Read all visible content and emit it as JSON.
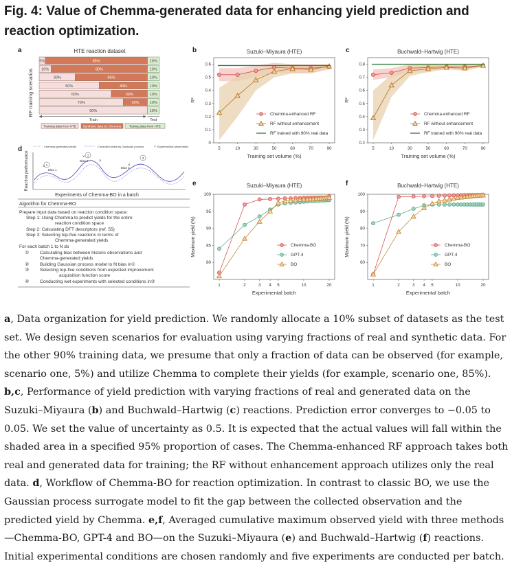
{
  "figure": {
    "title": "Fig. 4: Value of Chemma-generated data for enhancing yield prediction and reaction optimization."
  },
  "panel_a": {
    "label": "a",
    "title": "HTE reaction dataset",
    "y_axis_label": "RF training scenarios",
    "rows": [
      {
        "real": "5%",
        "synthetic": "85%",
        "test": "10%",
        "real_frac": 0.05,
        "synthetic_frac": 0.85
      },
      {
        "real": "10%",
        "synthetic": "80%",
        "test": "10%",
        "real_frac": 0.1,
        "synthetic_frac": 0.8
      },
      {
        "real": "30%",
        "synthetic": "60%",
        "test": "10%",
        "real_frac": 0.3,
        "synthetic_frac": 0.6
      },
      {
        "real": "50%",
        "synthetic": "40%",
        "test": "10%",
        "real_frac": 0.5,
        "synthetic_frac": 0.4
      },
      {
        "real": "60%",
        "synthetic": "30%",
        "test": "10%",
        "real_frac": 0.6,
        "synthetic_frac": 0.3
      },
      {
        "real": "70%",
        "synthetic": "20%",
        "test": "10%",
        "real_frac": 0.7,
        "synthetic_frac": 0.2
      },
      {
        "real": "90%",
        "synthetic": "",
        "test": "10%",
        "real_frac": 0.9,
        "synthetic_frac": 0.0
      }
    ],
    "train_label": "Train",
    "test_label": "Test",
    "legend": [
      "Training data from HTE",
      "Synthetic data by Chemma",
      "Testing data from HTE"
    ],
    "colors": {
      "real": "#f6dede",
      "synthetic": "#d3795a",
      "test": "#d9ecd0",
      "border": "#8a6a5a"
    }
  },
  "panel_d": {
    "label": "d",
    "legend": [
      "Chemma-generated yields",
      "Corrected yields by Gaussian process",
      "Experimental observation"
    ],
    "y_axis_label": "Reaction performance",
    "bias_labels": [
      "Bias 1",
      "Bias 2",
      "Bias 3"
    ],
    "step_markers": [
      "①",
      "②",
      "③",
      "④"
    ],
    "x_caption": "Experiments of Chemma-BO in a batch",
    "algorithm_title": "Algorithm for Chemma-BO",
    "algorithm_lines": [
      "Prepare input data based on reaction condition space:",
      "Step 1: Using Chemma to predict yields for the entire",
      "reaction condition space",
      "Step 2: Calculating DFT descriptors (ref. 55)",
      "Step 3: Selecting top-five reactions in terms of",
      "Chemma-generated yields",
      "For each batch 1 to N do",
      "Calculating bias between historic observations and",
      "Chemma-generated yields",
      "Building Gaussian process model to fit bias in①",
      "Selecting top-five conditions from expected improvement",
      "acquisition function score",
      "Conducting wet experiments with selected conditions in③"
    ]
  },
  "chart_data": [
    {
      "panel": "b",
      "type": "line",
      "title": "Suzuki–Miyaura (HTE)",
      "xlabel": "Training set volume (%)",
      "ylabel": "R²",
      "categories": [
        "5",
        "10",
        "30",
        "50",
        "60",
        "70",
        "90"
      ],
      "ylim": [
        0,
        0.65
      ],
      "yticks": [
        "0",
        "0.1",
        "0.2",
        "0.3",
        "0.4",
        "0.5",
        "0.6"
      ],
      "grid": false,
      "legend_position": "lower-right",
      "series": [
        {
          "name": "Chemma-enhanced RF",
          "marker": "circle",
          "color": "#d9534f",
          "band_color": "#f4c4c0",
          "values": [
            0.52,
            0.52,
            0.55,
            0.575,
            0.57,
            0.57,
            0.58
          ],
          "band_low": [
            0.47,
            0.47,
            0.5,
            0.54,
            0.53,
            0.53,
            0.56
          ],
          "band_high": [
            0.57,
            0.57,
            0.59,
            0.61,
            0.6,
            0.6,
            0.6
          ]
        },
        {
          "name": "RF without enhancement",
          "marker": "triangle",
          "color": "#b5701a",
          "band_color": "#e8d2ad",
          "values": [
            0.23,
            0.36,
            0.48,
            0.545,
            0.565,
            0.56,
            0.585
          ],
          "band_low": [
            0.02,
            0.2,
            0.4,
            0.5,
            0.53,
            0.53,
            0.57
          ],
          "band_high": [
            0.42,
            0.51,
            0.56,
            0.59,
            0.6,
            0.59,
            0.6
          ]
        },
        {
          "name": "RF trained with 90% real data",
          "marker": "line",
          "color": "#2e7d32",
          "values": [
            0.59,
            0.59,
            0.59,
            0.59,
            0.59,
            0.59,
            0.59
          ]
        }
      ]
    },
    {
      "panel": "c",
      "type": "line",
      "title": "Buchwald–Hartwig (HTE)",
      "xlabel": "Training set volume (%)",
      "ylabel": "R²",
      "categories": [
        "5",
        "10",
        "30",
        "50",
        "60",
        "70",
        "90"
      ],
      "ylim": [
        0.2,
        0.85
      ],
      "yticks": [
        "0.2",
        "0.3",
        "0.4",
        "0.5",
        "0.6",
        "0.7",
        "0.8"
      ],
      "grid": false,
      "legend_position": "lower-right",
      "series": [
        {
          "name": "Chemma-enhanced RF",
          "marker": "circle",
          "color": "#d9534f",
          "band_color": "#f4c4c0",
          "values": [
            0.72,
            0.735,
            0.77,
            0.775,
            0.78,
            0.78,
            0.79
          ],
          "band_low": [
            0.68,
            0.7,
            0.74,
            0.75,
            0.76,
            0.76,
            0.78
          ],
          "band_high": [
            0.76,
            0.77,
            0.8,
            0.8,
            0.8,
            0.8,
            0.8
          ]
        },
        {
          "name": "RF without enhancement",
          "marker": "triangle",
          "color": "#b5701a",
          "band_color": "#e8d2ad",
          "values": [
            0.39,
            0.64,
            0.75,
            0.765,
            0.775,
            0.77,
            0.79
          ],
          "band_low": [
            0.22,
            0.55,
            0.71,
            0.74,
            0.76,
            0.75,
            0.78
          ],
          "band_high": [
            0.6,
            0.72,
            0.79,
            0.8,
            0.8,
            0.8,
            0.8
          ]
        },
        {
          "name": "RF trained with 90% real data",
          "marker": "line",
          "color": "#2e7d32",
          "values": [
            0.8,
            0.8,
            0.8,
            0.8,
            0.8,
            0.8,
            0.8
          ]
        }
      ]
    },
    {
      "panel": "e",
      "type": "line",
      "title": "Suzuki–Miyaura (HTE)",
      "xlabel": "Experimental batch",
      "ylabel": "Maximum yield (%)",
      "x": [
        1,
        2,
        3,
        4,
        5,
        6,
        7,
        8,
        9,
        10,
        11,
        12,
        13,
        14,
        15,
        16,
        17,
        18,
        19,
        20
      ],
      "xticks": [
        "1",
        "2",
        "3",
        "4",
        "5",
        "10",
        "20"
      ],
      "ylim": [
        75,
        100
      ],
      "yticks": [
        "80",
        "85",
        "90",
        "95",
        "100"
      ],
      "legend_position": "center-right",
      "series": [
        {
          "name": "Chemma-BO",
          "marker": "circle",
          "color": "#d9534f",
          "values": [
            77,
            97,
            98.5,
            98.6,
            98.7,
            98.8,
            98.8,
            98.9,
            98.9,
            99,
            99,
            99,
            99,
            99,
            99,
            99,
            99,
            99,
            99,
            99.4
          ]
        },
        {
          "name": "GPT-4",
          "marker": "circle",
          "color": "#5aaa8c",
          "values": [
            84,
            91,
            93.5,
            95.5,
            97,
            97.3,
            97.5,
            97.6,
            97.7,
            97.8,
            97.9,
            98,
            98,
            98.1,
            98.1,
            98.2,
            98.2,
            98.2,
            98.3,
            98.3
          ]
        },
        {
          "name": "BO",
          "marker": "triangle",
          "color": "#c98a3a",
          "values": [
            76,
            87,
            92,
            95,
            97.5,
            98,
            98.2,
            98.3,
            98.4,
            98.5,
            98.5,
            98.6,
            98.6,
            98.7,
            98.7,
            98.8,
            98.8,
            98.9,
            98.9,
            99
          ]
        }
      ]
    },
    {
      "panel": "f",
      "type": "line",
      "title": "Buchwald–Hartwig (HTE)",
      "xlabel": "Experimental batch",
      "ylabel": "Maximum yield (%)",
      "x": [
        1,
        2,
        3,
        4,
        5,
        6,
        7,
        8,
        9,
        10,
        11,
        12,
        13,
        14,
        15,
        16,
        17,
        18,
        19,
        20
      ],
      "xticks": [
        "1",
        "2",
        "3",
        "4",
        "5",
        "10",
        "20"
      ],
      "ylim": [
        50,
        100
      ],
      "yticks": [
        "60",
        "70",
        "80",
        "90",
        "100"
      ],
      "legend_position": "center-right",
      "series": [
        {
          "name": "Chemma-BO",
          "marker": "circle",
          "color": "#d9534f",
          "values": [
            53,
            98.5,
            98.7,
            98.8,
            99,
            99.2,
            99.3,
            99.3,
            99.4,
            99.4,
            99.5,
            99.5,
            99.5,
            99.5,
            99.5,
            99.5,
            99.5,
            99.5,
            99.5,
            99.6
          ]
        },
        {
          "name": "GPT-4",
          "marker": "circle",
          "color": "#5aaa8c",
          "values": [
            83,
            88,
            91.5,
            93.5,
            94,
            94,
            94,
            94,
            94,
            94,
            94,
            94,
            94,
            94,
            94,
            94,
            94,
            94,
            94,
            94
          ]
        },
        {
          "name": "BO",
          "marker": "triangle",
          "color": "#c98a3a",
          "values": [
            53,
            78,
            87,
            92,
            94.5,
            96,
            96.5,
            97,
            97.5,
            98,
            98.2,
            98.4,
            98.6,
            98.8,
            99,
            99.1,
            99.2,
            99.3,
            99.4,
            99.5
          ]
        }
      ]
    }
  ],
  "caption": {
    "a_label": "a",
    "a_text": ", Data organization for yield prediction. We randomly allocate a 10% subset of datasets as the test set. We design seven scenarios for evaluation using varying fractions of real and synthetic data. For the other 90% training data, we presume that only a fraction of data can be observed (for example, scenario one, 5%) and utilize Chemma to complete their yields (for example, scenario one, 85%). ",
    "bc_label": "b,c",
    "bc_text_1": ", Performance of yield prediction with varying fractions of real and generated data on the Suzuki–Miyaura (",
    "b_ref": "b",
    "bc_text_2": ") and Buchwald–Hartwig (",
    "c_ref": "c",
    "bc_text_3": ") reactions. Prediction error converges to −0.05 to 0.05. We set the value of uncertainty as 0.5. It is expected that the actual values will fall within the shaded area in a specified 95% proportion of cases. The Chemma-enhanced RF approach takes both real and generated data for training; the RF without enhancement approach utilizes only the real data. ",
    "d_label": "d",
    "d_text": ", Workflow of Chemma-BO for reaction optimization. In contrast to classic BO, we use the Gaussian process surrogate model to fit the gap between the collected observation and the predicted yield by Chemma. ",
    "ef_label": "e,f",
    "ef_text_1": ", Averaged cumulative maximum observed yield with three methods—Chemma-BO, GPT-4 and BO—on the Suzuki–Miyaura (",
    "e_ref": "e",
    "ef_text_2": ") and Buchwald–Hartwig (",
    "f_ref": "f",
    "ef_text_3": ") reactions. Initial experimental conditions are chosen randomly and five experiments are conducted per batch."
  }
}
